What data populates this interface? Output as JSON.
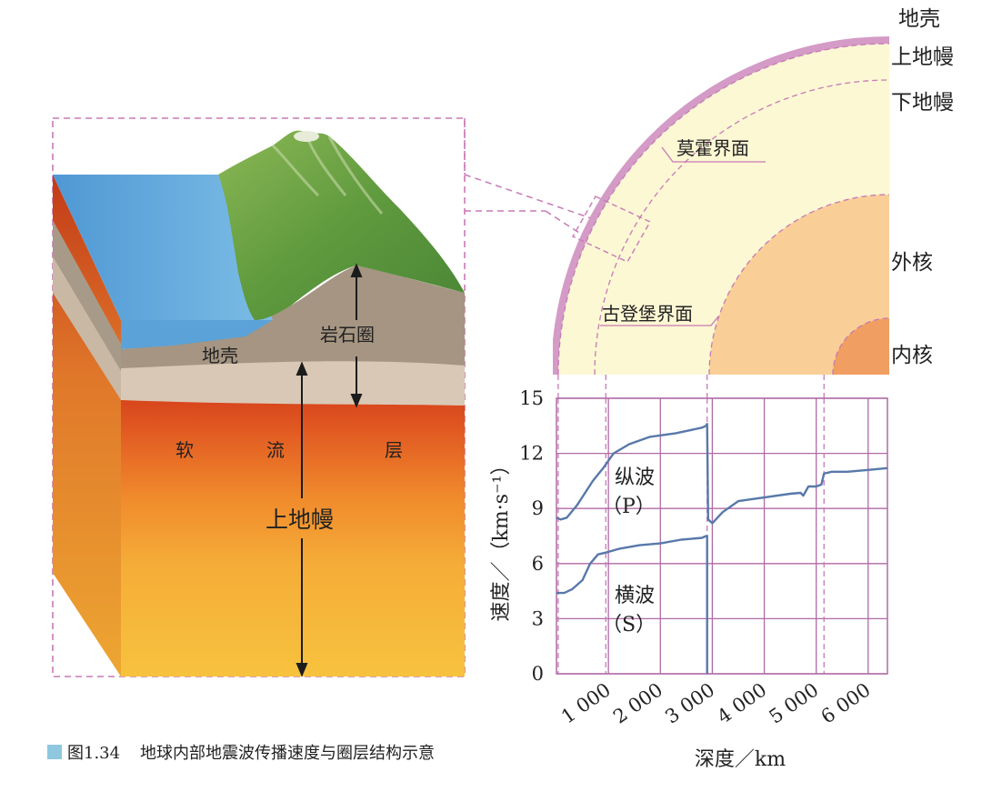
{
  "caption": {
    "figure_number": "图1.34",
    "title": "地球内部地震波传播速度与圈层结构示意",
    "marker_color": "#8fc7df"
  },
  "block_diagram": {
    "crust": "地壳",
    "lithosphere": "岩石圈",
    "asthenosphere_chars": [
      "软",
      "流",
      "层"
    ],
    "upper_mantle": "上地幔"
  },
  "quarter_section": {
    "crust": "地壳",
    "upper_mantle": "上地幔",
    "lower_mantle": "下地幔",
    "moho": "莫霍界面",
    "gutenberg": "古登堡界面",
    "outer_core": "外核",
    "inner_core": "内核",
    "colors": {
      "crust": "#d49bc7",
      "mantle": "#fdf8d4",
      "outer_core": "#f9cf97",
      "inner_core": "#f19e63",
      "dashed_guides": "#c77ab5"
    }
  },
  "chart_data": {
    "type": "line",
    "xlabel": "深度／km",
    "ylabel": "速度／（km·s⁻¹）",
    "xlim": [
      0,
      6371
    ],
    "ylim": [
      0,
      15
    ],
    "xticks": [
      1000,
      2000,
      3000,
      4000,
      5000,
      6000
    ],
    "xtick_labels": [
      "1 000",
      "2 000",
      "3 000",
      "4 000",
      "5 000",
      "6 000"
    ],
    "yticks": [
      0,
      3,
      6,
      9,
      12,
      15
    ],
    "ytick_labels": [
      "0",
      "3",
      "6",
      "9",
      "12",
      "15"
    ],
    "grid": true,
    "boundaries_km": [
      33,
      950,
      2900,
      5150
    ],
    "series": [
      {
        "name": "纵波（P）",
        "label_line1": "纵波",
        "label_line2": "（P）",
        "color": "#5878aa",
        "x": [
          0,
          80,
          200,
          400,
          700,
          900,
          1100,
          1400,
          1800,
          2300,
          2800,
          2880,
          2900,
          2920,
          3000,
          3200,
          3500,
          4000,
          4500,
          4700,
          4750,
          4850,
          5000,
          5100,
          5150,
          5300,
          5600,
          6000,
          6371
        ],
        "y": [
          8.5,
          8.4,
          8.5,
          9.2,
          10.5,
          11.2,
          12.0,
          12.5,
          12.9,
          13.1,
          13.4,
          13.5,
          13.6,
          8.4,
          8.2,
          8.8,
          9.4,
          9.6,
          9.8,
          9.85,
          9.7,
          10.2,
          10.2,
          10.3,
          10.9,
          11.0,
          11.0,
          11.1,
          11.2
        ]
      },
      {
        "name": "横波（S）",
        "label_line1": "横波",
        "label_line2": "（S）",
        "color": "#5878aa",
        "x": [
          0,
          150,
          300,
          500,
          650,
          800,
          950,
          1200,
          1600,
          2000,
          2400,
          2800,
          2880,
          2900,
          2900
        ],
        "y": [
          4.4,
          4.4,
          4.6,
          5.1,
          6.0,
          6.5,
          6.6,
          6.8,
          7.0,
          7.1,
          7.3,
          7.4,
          7.5,
          7.5,
          0
        ]
      }
    ]
  }
}
